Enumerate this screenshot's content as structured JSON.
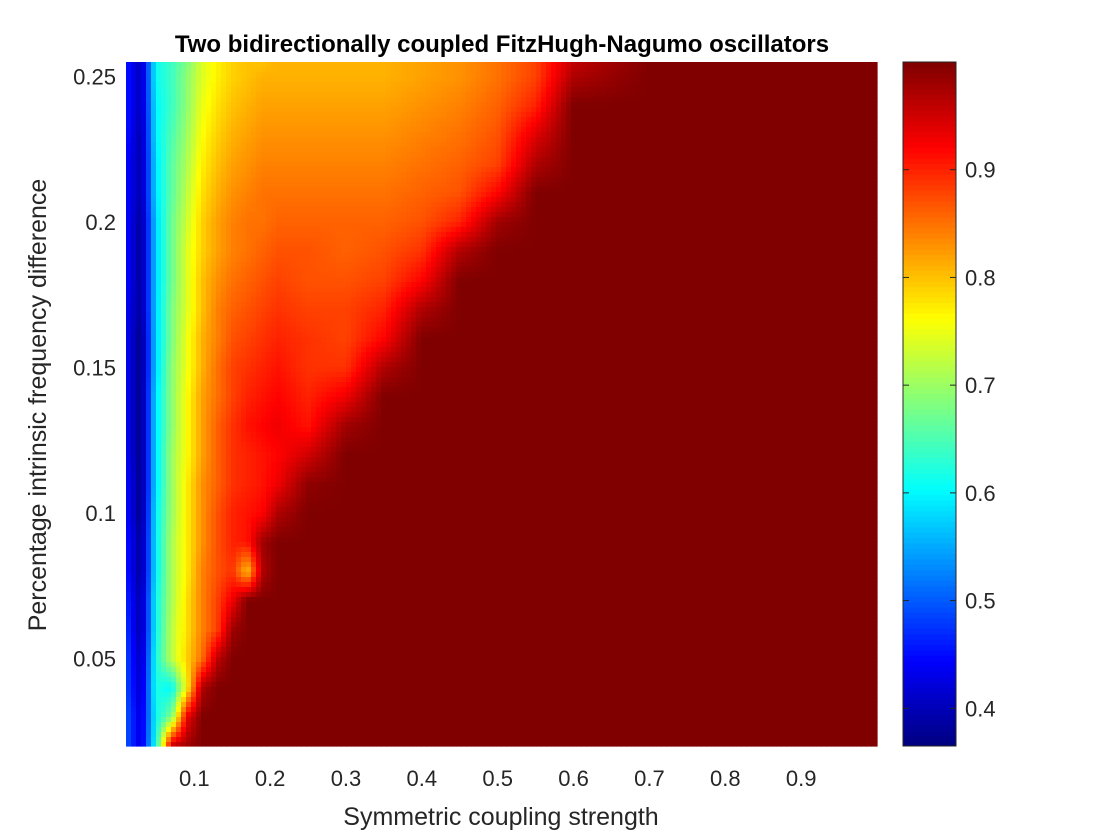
{
  "chart_data": {
    "type": "heatmap",
    "title": "Two bidirectionally coupled FitzHugh-Nagumo oscillators",
    "xlabel": "Symmetric coupling strength",
    "ylabel": "Percentage intrinsic frequency difference",
    "xlim": [
      0.01,
      1.0
    ],
    "ylim": [
      0.02,
      0.255
    ],
    "xticks": [
      "0.1",
      "0.2",
      "0.3",
      "0.4",
      "0.5",
      "0.6",
      "0.7",
      "0.8",
      "0.9"
    ],
    "yticks": [
      "0.05",
      "0.1",
      "0.15",
      "0.2",
      "0.25"
    ],
    "colormap": "jet",
    "color_range": [
      0.365,
      1.0
    ],
    "colorbar_ticks": [
      "0.4",
      "0.5",
      "0.6",
      "0.7",
      "0.8",
      "0.9"
    ],
    "colorbar_placement": "right",
    "grid": false,
    "x": [
      0.01,
      0.03,
      0.05,
      0.07,
      0.09,
      0.11,
      0.13,
      0.15,
      0.17,
      0.19,
      0.21,
      0.25,
      0.3,
      0.35,
      0.4,
      0.45,
      0.5,
      0.55,
      0.6,
      0.7,
      0.8,
      0.9,
      1.0
    ],
    "y": [
      0.02,
      0.03,
      0.04,
      0.05,
      0.06,
      0.07,
      0.08,
      0.09,
      0.1,
      0.11,
      0.12,
      0.13,
      0.14,
      0.15,
      0.16,
      0.17,
      0.18,
      0.19,
      0.2,
      0.21,
      0.22,
      0.23,
      0.24,
      0.25,
      0.255
    ],
    "z": [
      [
        0.5,
        0.42,
        0.62,
        0.96,
        0.98,
        1.0,
        1.0,
        1.0,
        1.0,
        1.0,
        1.0,
        1.0,
        1.0,
        1.0,
        1.0,
        1.0,
        1.0,
        1.0,
        1.0,
        1.0,
        1.0,
        1.0,
        1.0
      ],
      [
        0.5,
        0.42,
        0.61,
        0.68,
        0.93,
        1.0,
        1.0,
        1.0,
        1.0,
        1.0,
        1.0,
        1.0,
        1.0,
        1.0,
        1.0,
        1.0,
        1.0,
        1.0,
        1.0,
        1.0,
        1.0,
        1.0,
        1.0
      ],
      [
        0.49,
        0.41,
        0.62,
        0.6,
        0.76,
        0.97,
        1.0,
        1.0,
        1.0,
        1.0,
        1.0,
        1.0,
        1.0,
        1.0,
        1.0,
        1.0,
        1.0,
        1.0,
        1.0,
        1.0,
        1.0,
        1.0,
        1.0
      ],
      [
        0.49,
        0.4,
        0.62,
        0.72,
        0.79,
        0.85,
        0.96,
        1.0,
        1.0,
        1.0,
        1.0,
        1.0,
        1.0,
        1.0,
        1.0,
        1.0,
        1.0,
        1.0,
        1.0,
        1.0,
        1.0,
        1.0,
        1.0
      ],
      [
        0.48,
        0.39,
        0.61,
        0.72,
        0.78,
        0.84,
        0.88,
        0.98,
        1.0,
        1.0,
        1.0,
        1.0,
        1.0,
        1.0,
        1.0,
        1.0,
        1.0,
        1.0,
        1.0,
        1.0,
        1.0,
        1.0,
        1.0
      ],
      [
        0.47,
        0.39,
        0.61,
        0.71,
        0.78,
        0.84,
        0.88,
        0.93,
        1.0,
        1.0,
        1.0,
        1.0,
        1.0,
        1.0,
        1.0,
        1.0,
        1.0,
        1.0,
        1.0,
        1.0,
        1.0,
        1.0,
        1.0
      ],
      [
        0.46,
        0.38,
        0.6,
        0.71,
        0.77,
        0.84,
        0.87,
        0.89,
        0.8,
        0.97,
        1.0,
        1.0,
        1.0,
        1.0,
        1.0,
        1.0,
        1.0,
        1.0,
        1.0,
        1.0,
        1.0,
        1.0,
        1.0
      ],
      [
        0.46,
        0.38,
        0.6,
        0.71,
        0.77,
        0.83,
        0.87,
        0.9,
        0.91,
        0.98,
        1.0,
        1.0,
        1.0,
        1.0,
        1.0,
        1.0,
        1.0,
        1.0,
        1.0,
        1.0,
        1.0,
        1.0,
        1.0
      ],
      [
        0.45,
        0.37,
        0.6,
        0.7,
        0.77,
        0.83,
        0.87,
        0.9,
        0.91,
        0.92,
        0.97,
        1.0,
        1.0,
        1.0,
        1.0,
        1.0,
        1.0,
        1.0,
        1.0,
        1.0,
        1.0,
        1.0,
        1.0
      ],
      [
        0.45,
        0.37,
        0.59,
        0.7,
        0.77,
        0.83,
        0.86,
        0.89,
        0.9,
        0.91,
        0.93,
        0.99,
        1.0,
        1.0,
        1.0,
        1.0,
        1.0,
        1.0,
        1.0,
        1.0,
        1.0,
        1.0,
        1.0
      ],
      [
        0.44,
        0.37,
        0.59,
        0.7,
        0.76,
        0.82,
        0.86,
        0.89,
        0.9,
        0.91,
        0.92,
        0.95,
        1.0,
        1.0,
        1.0,
        1.0,
        1.0,
        1.0,
        1.0,
        1.0,
        1.0,
        1.0,
        1.0
      ],
      [
        0.44,
        0.37,
        0.59,
        0.69,
        0.76,
        0.82,
        0.86,
        0.89,
        0.91,
        0.92,
        0.93,
        0.91,
        0.98,
        1.0,
        1.0,
        1.0,
        1.0,
        1.0,
        1.0,
        1.0,
        1.0,
        1.0,
        1.0
      ],
      [
        0.44,
        0.37,
        0.59,
        0.69,
        0.76,
        0.82,
        0.85,
        0.88,
        0.9,
        0.91,
        0.92,
        0.9,
        0.93,
        1.0,
        1.0,
        1.0,
        1.0,
        1.0,
        1.0,
        1.0,
        1.0,
        1.0,
        1.0
      ],
      [
        0.44,
        0.37,
        0.58,
        0.69,
        0.75,
        0.81,
        0.85,
        0.88,
        0.89,
        0.9,
        0.91,
        0.89,
        0.89,
        0.97,
        1.0,
        1.0,
        1.0,
        1.0,
        1.0,
        1.0,
        1.0,
        1.0,
        1.0
      ],
      [
        0.44,
        0.37,
        0.58,
        0.68,
        0.75,
        0.81,
        0.84,
        0.87,
        0.88,
        0.89,
        0.9,
        0.89,
        0.88,
        0.92,
        1.0,
        1.0,
        1.0,
        1.0,
        1.0,
        1.0,
        1.0,
        1.0,
        1.0
      ],
      [
        0.44,
        0.38,
        0.58,
        0.68,
        0.74,
        0.8,
        0.84,
        0.86,
        0.87,
        0.88,
        0.89,
        0.88,
        0.88,
        0.9,
        0.97,
        1.0,
        1.0,
        1.0,
        1.0,
        1.0,
        1.0,
        1.0,
        1.0
      ],
      [
        0.45,
        0.38,
        0.58,
        0.67,
        0.74,
        0.8,
        0.83,
        0.85,
        0.86,
        0.87,
        0.88,
        0.87,
        0.87,
        0.88,
        0.92,
        1.0,
        1.0,
        1.0,
        1.0,
        1.0,
        1.0,
        1.0,
        1.0
      ],
      [
        0.45,
        0.38,
        0.58,
        0.67,
        0.74,
        0.79,
        0.82,
        0.84,
        0.85,
        0.86,
        0.87,
        0.87,
        0.86,
        0.87,
        0.89,
        0.97,
        1.0,
        1.0,
        1.0,
        1.0,
        1.0,
        1.0,
        1.0
      ],
      [
        0.45,
        0.38,
        0.58,
        0.67,
        0.73,
        0.79,
        0.82,
        0.84,
        0.85,
        0.85,
        0.86,
        0.86,
        0.86,
        0.86,
        0.87,
        0.9,
        0.98,
        1.0,
        1.0,
        1.0,
        1.0,
        1.0,
        1.0
      ],
      [
        0.45,
        0.39,
        0.59,
        0.66,
        0.72,
        0.78,
        0.81,
        0.83,
        0.84,
        0.85,
        0.85,
        0.85,
        0.85,
        0.85,
        0.86,
        0.87,
        0.92,
        1.0,
        1.0,
        1.0,
        1.0,
        1.0,
        1.0
      ],
      [
        0.45,
        0.39,
        0.59,
        0.66,
        0.71,
        0.77,
        0.8,
        0.82,
        0.83,
        0.84,
        0.84,
        0.84,
        0.84,
        0.84,
        0.85,
        0.86,
        0.88,
        0.97,
        1.0,
        1.0,
        1.0,
        1.0,
        1.0
      ],
      [
        0.46,
        0.39,
        0.6,
        0.65,
        0.7,
        0.76,
        0.79,
        0.81,
        0.82,
        0.83,
        0.83,
        0.83,
        0.83,
        0.83,
        0.84,
        0.85,
        0.87,
        0.94,
        1.0,
        1.0,
        1.0,
        1.0,
        1.0
      ],
      [
        0.46,
        0.4,
        0.6,
        0.64,
        0.69,
        0.75,
        0.78,
        0.8,
        0.81,
        0.82,
        0.82,
        0.82,
        0.82,
        0.82,
        0.83,
        0.84,
        0.86,
        0.9,
        1.0,
        1.0,
        1.0,
        1.0,
        1.0
      ],
      [
        0.46,
        0.4,
        0.61,
        0.64,
        0.69,
        0.74,
        0.77,
        0.79,
        0.8,
        0.81,
        0.81,
        0.81,
        0.81,
        0.81,
        0.82,
        0.83,
        0.85,
        0.88,
        0.97,
        1.0,
        1.0,
        1.0,
        1.0
      ],
      [
        0.46,
        0.4,
        0.61,
        0.64,
        0.68,
        0.74,
        0.77,
        0.79,
        0.8,
        0.8,
        0.81,
        0.81,
        0.81,
        0.81,
        0.82,
        0.83,
        0.85,
        0.88,
        0.96,
        1.0,
        1.0,
        1.0,
        1.0
      ]
    ]
  }
}
